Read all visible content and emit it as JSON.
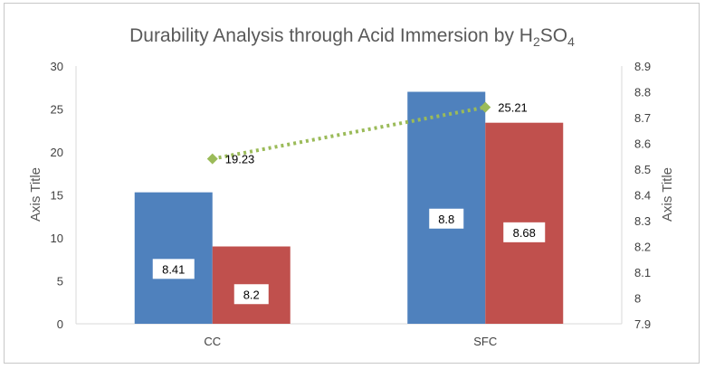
{
  "chart_data": {
    "type": "bar",
    "title": {
      "prefix": "Durability Analysis through Acid Immersion by H",
      "sub1": "2",
      "mid": "SO",
      "sub2": "4"
    },
    "categories": [
      "CC",
      "SFC"
    ],
    "ylabel_left": "Axis Title",
    "ylabel_right": "Axis Title",
    "ylim_left": [
      0,
      30
    ],
    "yticks_left": [
      0,
      5,
      10,
      15,
      20,
      25,
      30
    ],
    "ylim_right": [
      7.9,
      8.9
    ],
    "yticks_right": [
      "7.9",
      "8",
      "8.1",
      "8.2",
      "8.3",
      "8.4",
      "8.5",
      "8.6",
      "8.7",
      "8.8",
      "8.9"
    ],
    "grid": false,
    "series": [
      {
        "values": [
          15.3,
          27.0
        ],
        "labels": [
          "8.41",
          "8.8"
        ],
        "color": "#4f81bd",
        "axis": "left"
      },
      {
        "values": [
          9.0,
          23.4
        ],
        "labels": [
          "8.2",
          "8.68"
        ],
        "color": "#c0504d",
        "axis": "left"
      }
    ],
    "line_series": {
      "type": "line",
      "axis": "right",
      "values": [
        8.54,
        8.74
      ],
      "labels": [
        "19.23",
        "25.21"
      ],
      "color": "#9bbb59",
      "style": "dotted",
      "marker": "diamond"
    }
  }
}
